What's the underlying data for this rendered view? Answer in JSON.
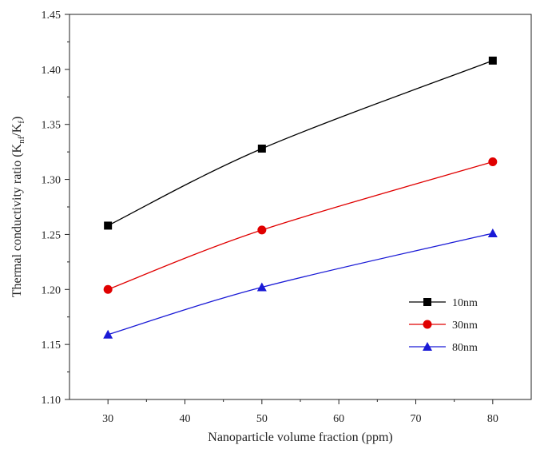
{
  "chart_data": {
    "type": "line",
    "xlabel": "Nanoparticle volume fraction (ppm)",
    "ylabel_parts": [
      "Thermal conductivity ratio (K",
      "nf",
      "/K",
      "f",
      ")"
    ],
    "xlim": [
      25,
      85
    ],
    "ylim": [
      1.1,
      1.45
    ],
    "xticks": [
      "30",
      "40",
      "50",
      "60",
      "70",
      "80"
    ],
    "yticks": [
      "1.10",
      "1.15",
      "1.20",
      "1.25",
      "1.30",
      "1.35",
      "1.40",
      "1.45"
    ],
    "x": [
      30,
      50,
      80
    ],
    "series": [
      {
        "name": "10nm",
        "values": [
          1.258,
          1.328,
          1.408
        ],
        "color": "#000000",
        "marker": "square"
      },
      {
        "name": "30nm",
        "values": [
          1.2,
          1.254,
          1.316
        ],
        "color": "#e00000",
        "marker": "circle"
      },
      {
        "name": "80nm",
        "values": [
          1.159,
          1.202,
          1.251
        ],
        "color": "#1a1ad6",
        "marker": "triangle"
      }
    ],
    "legend_position": "lower-right",
    "grid": false
  }
}
